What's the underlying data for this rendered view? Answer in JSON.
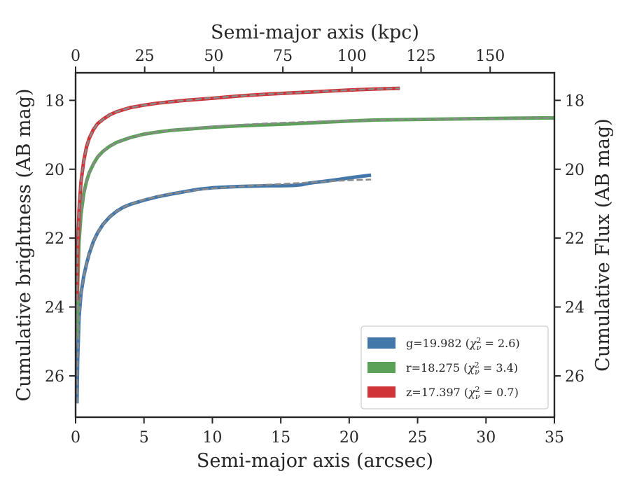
{
  "chart_data": {
    "type": "line",
    "xlabel": "Semi-major axis (arcsec)",
    "ylabel": "Cumulative brightness (AB mag)",
    "x2label": "Semi-major axis (kpc)",
    "y2label": "Cumulative Flux (AB mag)",
    "xlim": [
      0,
      35
    ],
    "x2lim": [
      0,
      173.25
    ],
    "ylim": [
      27.2,
      17.2
    ],
    "y_inverted": true,
    "xticks": [
      0,
      5,
      10,
      15,
      20,
      25,
      30,
      35
    ],
    "x2ticks": [
      0,
      25,
      50,
      75,
      100,
      125,
      150
    ],
    "yticks": [
      18,
      20,
      22,
      24,
      26
    ],
    "grid": false,
    "legend_position": "lower-right",
    "legend": [
      {
        "label": "g=19.982 (χ²ᵥ = 2.6)",
        "text": "g=19.982 (",
        "math": "χ",
        "sub": "ν",
        "sup": "2",
        "tail": " = 2.6)",
        "color": "#4477a9"
      },
      {
        "label": "r=18.275 (χ²ᵥ = 3.4)",
        "text": "r=18.275 (",
        "math": "χ",
        "sub": "ν",
        "sup": "2",
        "tail": " = 3.4)",
        "color": "#5ba158"
      },
      {
        "label": "z=17.397 (χ²ᵥ = 0.7)",
        "text": "z=17.397 (",
        "math": "χ",
        "sub": "ν",
        "sup": "2",
        "tail": " = 0.7)",
        "color": "#d03338"
      }
    ],
    "series": [
      {
        "band": "g",
        "color": "#4477a9",
        "width": 5,
        "x": [
          0.1,
          0.15,
          0.25,
          0.4,
          0.6,
          0.8,
          1.0,
          1.3,
          1.6,
          2.0,
          2.5,
          3.0,
          3.5,
          4.0,
          5.0,
          6.0,
          7.0,
          8.0,
          9.0,
          10.0,
          11.0,
          12.0,
          13.0,
          14.0,
          15.0,
          16.0,
          16.5,
          17.0,
          17.5,
          18.0,
          19.0,
          20.0,
          21.0,
          21.6
        ],
        "y": [
          26.8,
          25.6,
          24.3,
          23.6,
          23.1,
          22.75,
          22.45,
          22.1,
          21.85,
          21.6,
          21.38,
          21.22,
          21.1,
          21.02,
          20.9,
          20.8,
          20.72,
          20.65,
          20.58,
          20.54,
          20.52,
          20.5,
          20.49,
          20.48,
          20.48,
          20.47,
          20.45,
          20.41,
          20.38,
          20.36,
          20.31,
          20.25,
          20.2,
          20.17
        ]
      },
      {
        "band": "g-model",
        "color": "#8a8a8a",
        "width": 2.5,
        "dashed": true,
        "x": [
          0.1,
          0.15,
          0.25,
          0.4,
          0.6,
          0.8,
          1.0,
          1.3,
          1.6,
          2.0,
          2.5,
          3.0,
          3.5,
          4.0,
          5.0,
          6.0,
          7.0,
          8.0,
          9.0,
          10.0,
          12.0,
          14.0,
          16.0,
          18.0,
          20.0,
          21.6
        ],
        "y": [
          26.8,
          25.6,
          24.3,
          23.6,
          23.1,
          22.75,
          22.45,
          22.1,
          21.85,
          21.6,
          21.38,
          21.22,
          21.1,
          21.02,
          20.88,
          20.79,
          20.71,
          20.65,
          20.6,
          20.56,
          20.5,
          20.45,
          20.41,
          20.36,
          20.32,
          20.3
        ]
      },
      {
        "band": "r",
        "color": "#5ba158",
        "width": 5,
        "x": [
          0.1,
          0.15,
          0.25,
          0.4,
          0.6,
          0.8,
          1.0,
          1.3,
          1.6,
          2.0,
          2.5,
          3.0,
          4.0,
          5.0,
          6.0,
          7.0,
          8.0,
          10.0,
          12.0,
          14.0,
          16.0,
          18.0,
          20.0,
          22.0,
          24.0,
          26.0,
          28.0,
          30.0,
          32.0,
          34.0,
          35.0
        ],
        "y": [
          24.9,
          23.4,
          22.1,
          21.3,
          20.7,
          20.35,
          20.1,
          19.85,
          19.65,
          19.48,
          19.33,
          19.22,
          19.08,
          18.98,
          18.92,
          18.87,
          18.84,
          18.78,
          18.74,
          18.71,
          18.68,
          18.64,
          18.6,
          18.57,
          18.56,
          18.55,
          18.54,
          18.53,
          18.52,
          18.51,
          18.51
        ]
      },
      {
        "band": "r-model",
        "color": "#8a8a8a",
        "width": 2.5,
        "dashed": true,
        "x": [
          0.1,
          0.15,
          0.25,
          0.4,
          0.6,
          0.8,
          1.0,
          1.3,
          1.6,
          2.0,
          2.5,
          3.0,
          4.0,
          5.0,
          6.0,
          7.0,
          8.0,
          10.0,
          12.0,
          14.0,
          16.0,
          18.0,
          20.0,
          22.0,
          24.0,
          26.0,
          28.0,
          30.0,
          32.0,
          34.0,
          35.0
        ],
        "y": [
          24.9,
          23.4,
          22.1,
          21.3,
          20.7,
          20.35,
          20.1,
          19.85,
          19.65,
          19.48,
          19.33,
          19.22,
          19.08,
          18.98,
          18.92,
          18.87,
          18.83,
          18.76,
          18.71,
          18.67,
          18.64,
          18.61,
          18.59,
          18.57,
          18.56,
          18.55,
          18.54,
          18.53,
          18.52,
          18.51,
          18.51
        ]
      },
      {
        "band": "z",
        "color": "#d03338",
        "width": 5,
        "x": [
          0.1,
          0.15,
          0.25,
          0.4,
          0.6,
          0.8,
          1.0,
          1.3,
          1.6,
          2.0,
          2.5,
          3.0,
          4.0,
          5.0,
          6.0,
          7.0,
          8.0,
          10.0,
          12.0,
          14.0,
          16.0,
          18.0,
          20.0,
          22.0,
          23.7
        ],
        "y": [
          23.8,
          22.4,
          21.2,
          20.35,
          19.75,
          19.35,
          19.1,
          18.85,
          18.68,
          18.55,
          18.42,
          18.33,
          18.21,
          18.14,
          18.08,
          18.04,
          18.0,
          17.94,
          17.87,
          17.82,
          17.78,
          17.74,
          17.7,
          17.67,
          17.65
        ]
      },
      {
        "band": "z-model",
        "color": "#8a8a8a",
        "width": 2.5,
        "dashed": true,
        "x": [
          0.1,
          0.15,
          0.25,
          0.4,
          0.6,
          0.8,
          1.0,
          1.3,
          1.6,
          2.0,
          2.5,
          3.0,
          4.0,
          5.0,
          6.0,
          7.0,
          8.0,
          10.0,
          12.0,
          14.0,
          16.0,
          18.0,
          20.0,
          22.0,
          23.7
        ],
        "y": [
          23.8,
          22.4,
          21.2,
          20.35,
          19.75,
          19.35,
          19.1,
          18.85,
          18.68,
          18.55,
          18.42,
          18.33,
          18.21,
          18.14,
          18.08,
          18.04,
          18.0,
          17.93,
          17.87,
          17.82,
          17.78,
          17.74,
          17.7,
          17.67,
          17.65
        ]
      }
    ]
  }
}
